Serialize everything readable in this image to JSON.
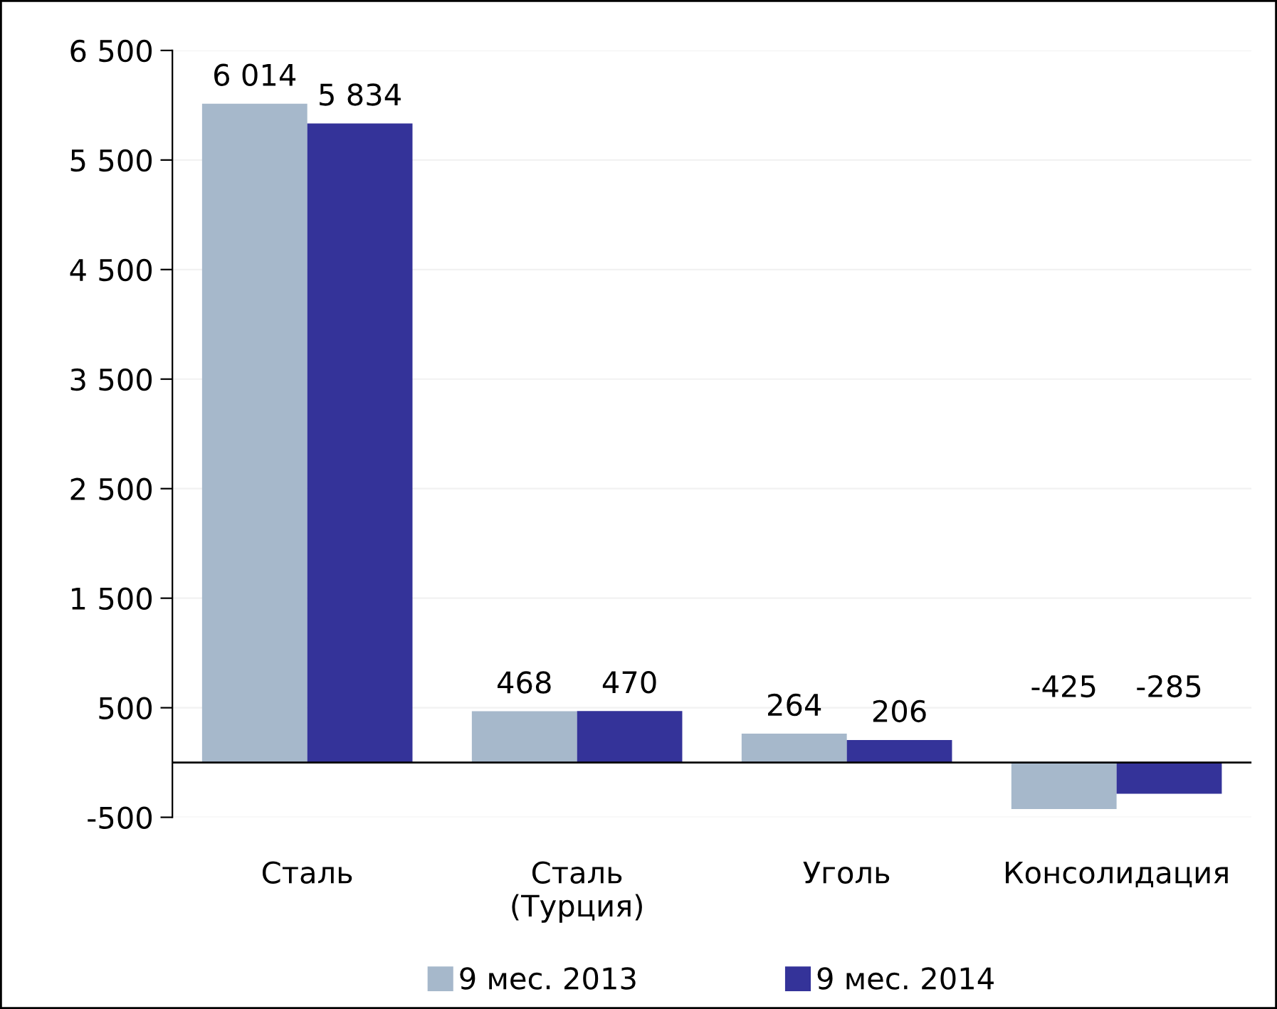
{
  "chart_data": {
    "type": "bar",
    "categories": [
      "Сталь",
      "Сталь\n(Турция)",
      "Уголь",
      "Консолидация"
    ],
    "series": [
      {
        "name": "9 мес. 2013",
        "color": "#a6b8cb",
        "values": [
          6014,
          468,
          264,
          -425
        ],
        "value_labels": [
          "6 014",
          "468",
          "264",
          "-425"
        ]
      },
      {
        "name": "9 мес. 2014",
        "color": "#343399",
        "values": [
          5834,
          470,
          206,
          -285
        ],
        "value_labels": [
          "5 834",
          "470",
          "206",
          "-285"
        ]
      }
    ],
    "ylim": [
      -500,
      6500
    ],
    "yticks": [
      {
        "value": -500,
        "label": "-500"
      },
      500,
      {
        "value": 1500,
        "label": "1 500"
      },
      {
        "value": 2500,
        "label": "2 500"
      },
      {
        "value": 3500,
        "label": "3 500"
      },
      {
        "value": 4500,
        "label": "4 500"
      },
      {
        "value": 5500,
        "label": "5 500"
      },
      {
        "value": 6500,
        "label": "6 500"
      }
    ],
    "grid": "y",
    "legend": "bottom"
  }
}
